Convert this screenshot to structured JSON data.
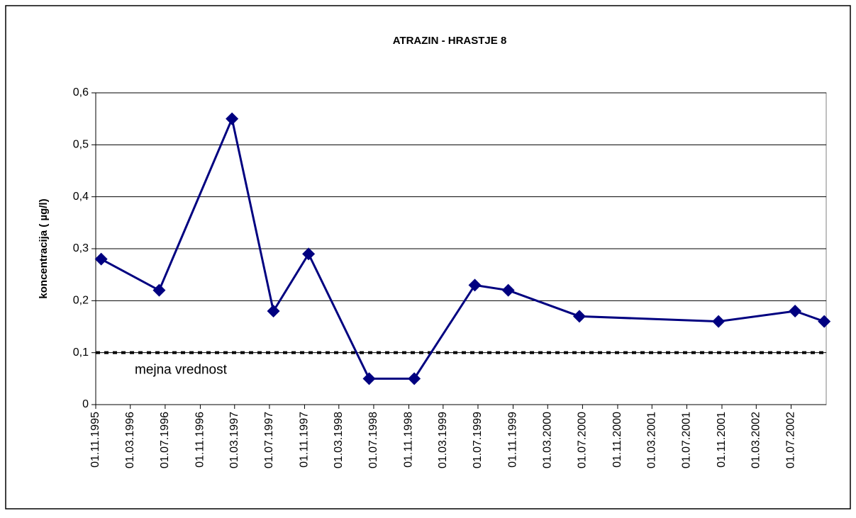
{
  "chart_data": {
    "type": "line",
    "title": "ATRAZIN - HRASTJE 8",
    "y_label": "koncentracija ( µg/l)",
    "x": [
      "1995-11-20",
      "1996-06-10",
      "1997-02-20",
      "1997-07-15",
      "1997-11-15",
      "1998-06-15",
      "1998-11-20",
      "1999-06-20",
      "1999-10-15",
      "2000-06-20",
      "2001-10-20",
      "2002-07-15",
      "2002-10-25"
    ],
    "series": [
      {
        "name": "ATRAZIN",
        "color": "#000080",
        "values": [
          0.28,
          0.22,
          0.55,
          0.18,
          0.29,
          0.05,
          0.05,
          0.23,
          0.22,
          0.17,
          0.16,
          0.18,
          0.16
        ]
      }
    ],
    "xlim": [
      "1995-11-01",
      "2002-11-01"
    ],
    "xticks": [
      {
        "value": "1995-11-01",
        "label": "01.11.1995"
      },
      {
        "value": "1996-03-01",
        "label": "01.03.1996"
      },
      {
        "value": "1996-07-01",
        "label": "01.07.1996"
      },
      {
        "value": "1996-11-01",
        "label": "01.11.1996"
      },
      {
        "value": "1997-03-01",
        "label": "01.03.1997"
      },
      {
        "value": "1997-07-01",
        "label": "01.07.1997"
      },
      {
        "value": "1997-11-01",
        "label": "01.11.1997"
      },
      {
        "value": "1998-03-01",
        "label": "01.03.1998"
      },
      {
        "value": "1998-07-01",
        "label": "01.07.1998"
      },
      {
        "value": "1998-11-01",
        "label": "01.11.1998"
      },
      {
        "value": "1999-03-01",
        "label": "01.03.1999"
      },
      {
        "value": "1999-07-01",
        "label": "01.07.1999"
      },
      {
        "value": "1999-11-01",
        "label": "01.11.1999"
      },
      {
        "value": "2000-03-01",
        "label": "01.03.2000"
      },
      {
        "value": "2000-07-01",
        "label": "01.07.2000"
      },
      {
        "value": "2000-11-01",
        "label": "01.11.2000"
      },
      {
        "value": "2001-03-01",
        "label": "01.03.2001"
      },
      {
        "value": "2001-07-01",
        "label": "01.07.2001"
      },
      {
        "value": "2001-11-01",
        "label": "01.11.2001"
      },
      {
        "value": "2002-03-01",
        "label": "01.03.2002"
      },
      {
        "value": "2002-07-01",
        "label": "01.07.2002"
      }
    ],
    "ylim": [
      0,
      0.6
    ],
    "yticks": [
      0,
      {
        "value": 0.1,
        "label": "0,1"
      },
      {
        "value": 0.2,
        "label": "0,2"
      },
      {
        "value": 0.3,
        "label": "0,3"
      },
      {
        "value": 0.4,
        "label": "0,4"
      },
      {
        "value": 0.5,
        "label": "0,5"
      },
      {
        "value": 0.6,
        "label": "0,6"
      }
    ],
    "grid": true,
    "reference_line": {
      "value": 0.1,
      "label": "mejna vrednost"
    }
  }
}
